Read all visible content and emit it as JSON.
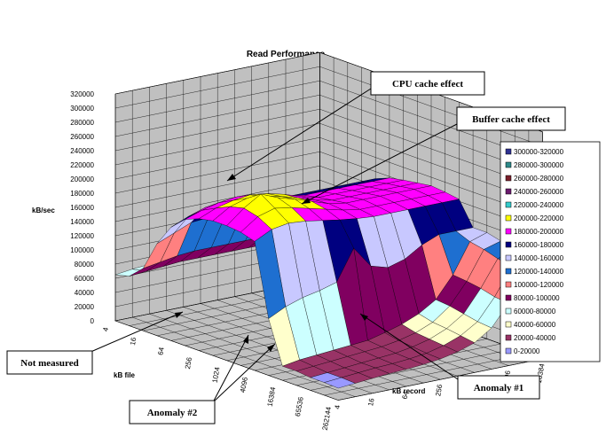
{
  "chart_data": {
    "type": "surface",
    "title": "Read Performance",
    "xlabel": "kB record",
    "ylabel": "kB file",
    "zlabel": "kB/sec",
    "zlim": [
      0,
      320000
    ],
    "z_ticks": [
      "0",
      "20000",
      "40000",
      "60000",
      "80000",
      "100000",
      "120000",
      "140000",
      "160000",
      "180000",
      "200000",
      "220000",
      "240000",
      "260000",
      "280000",
      "300000",
      "320000"
    ],
    "file_ticks": [
      "4",
      "16",
      "64",
      "256",
      "1024",
      "4096",
      "16384",
      "65536",
      "262144"
    ],
    "record_ticks": [
      "4",
      "16",
      "64",
      "256",
      "1024",
      "4096",
      "16384"
    ],
    "file_sizes_kb": [
      4,
      8,
      16,
      32,
      64,
      128,
      256,
      512,
      1024,
      2048,
      4096,
      8192,
      16384,
      32768,
      65536,
      131072,
      262144
    ],
    "record_sizes_kb": [
      4,
      8,
      16,
      32,
      64,
      128,
      256,
      512,
      1024,
      2048,
      4096,
      8192,
      16384
    ],
    "legend": [
      {
        "label": "300000-320000",
        "color": "#2e3192"
      },
      {
        "label": "280000-300000",
        "color": "#2e8b8b"
      },
      {
        "label": "260000-280000",
        "color": "#7b1f2b"
      },
      {
        "label": "240000-260000",
        "color": "#6a1a6e"
      },
      {
        "label": "220000-240000",
        "color": "#33cccc"
      },
      {
        "label": "200000-220000",
        "color": "#ffff00"
      },
      {
        "label": "180000-200000",
        "color": "#ff00ff"
      },
      {
        "label": "160000-180000",
        "color": "#000080"
      },
      {
        "label": "140000-160000",
        "color": "#c8c8ff"
      },
      {
        "label": "120000-140000",
        "color": "#1e6fd0"
      },
      {
        "label": "100000-120000",
        "color": "#ff8080"
      },
      {
        "label": "80000-100000",
        "color": "#800060"
      },
      {
        "label": "60000-80000",
        "color": "#ccffff"
      },
      {
        "label": "40000-60000",
        "color": "#ffffcc"
      },
      {
        "label": "20000-40000",
        "color": "#993366"
      },
      {
        "label": "0-20000",
        "color": "#9999ff"
      }
    ],
    "surface_values_kb_per_sec": [
      [
        65000,
        68000,
        70000,
        72000,
        72000,
        72000,
        72000,
        72000,
        72000,
        72000,
        72000,
        72000,
        72000
      ],
      [
        70000,
        72000,
        74000,
        76000,
        76000,
        76000,
        76000,
        76000,
        76000,
        76000,
        76000,
        76000,
        76000
      ],
      [
        88000,
        92000,
        96000,
        98000,
        98000,
        98000,
        98000,
        98000,
        98000,
        98000,
        98000,
        98000,
        98000
      ],
      [
        130000,
        140000,
        150000,
        152000,
        150000,
        148000,
        148000,
        148000,
        148000,
        148000,
        148000,
        148000,
        148000
      ],
      [
        160000,
        170000,
        178000,
        180000,
        178000,
        175000,
        172000,
        170000,
        170000,
        170000,
        170000,
        170000,
        170000
      ],
      [
        178000,
        186000,
        192000,
        195000,
        192000,
        188000,
        182000,
        178000,
        178000,
        178000,
        178000,
        178000,
        178000
      ],
      [
        186000,
        196000,
        202000,
        205000,
        202000,
        196000,
        188000,
        182000,
        182000,
        182000,
        182000,
        182000,
        182000
      ],
      [
        190000,
        205000,
        212000,
        210000,
        205000,
        198000,
        190000,
        185000,
        185000,
        185000,
        185000,
        185000,
        185000
      ],
      [
        190000,
        210000,
        225000,
        215000,
        208000,
        200000,
        192000,
        188000,
        188000,
        188000,
        188000,
        188000,
        188000
      ],
      [
        188000,
        205000,
        212000,
        208000,
        202000,
        196000,
        190000,
        186000,
        186000,
        186000,
        186000,
        186000,
        186000
      ],
      [
        182000,
        194000,
        198000,
        196000,
        192000,
        188000,
        185000,
        183000,
        183000,
        183000,
        183000,
        183000,
        183000
      ],
      [
        80000,
        92000,
        100000,
        105000,
        112000,
        155000,
        125000,
        118000,
        125000,
        140000,
        150000,
        150000,
        150000
      ],
      [
        20000,
        24000,
        26000,
        28000,
        30000,
        32000,
        38000,
        45000,
        55000,
        70000,
        100000,
        142000,
        150000
      ],
      [
        20000,
        22000,
        24000,
        26000,
        28000,
        30000,
        34000,
        40000,
        50000,
        68000,
        98000,
        138000,
        145000
      ],
      [
        18000,
        20000,
        22000,
        24000,
        26000,
        28000,
        32000,
        38000,
        48000,
        64000,
        95000,
        132000,
        140000
      ],
      [
        18000,
        20000,
        22000,
        24000,
        25000,
        27000,
        30000,
        36000,
        45000,
        60000,
        90000,
        128000,
        135000
      ],
      [
        17000,
        19000,
        21000,
        23000,
        24000,
        26000,
        29000,
        34000,
        42000,
        58000,
        88000,
        125000,
        130000
      ]
    ]
  },
  "annotations": {
    "cpu_cache": "CPU cache effect",
    "buffer_cache": "Buffer cache effect",
    "not_measured": "Not measured",
    "anomaly1": "Anomaly #1",
    "anomaly2": "Anomaly #2"
  }
}
